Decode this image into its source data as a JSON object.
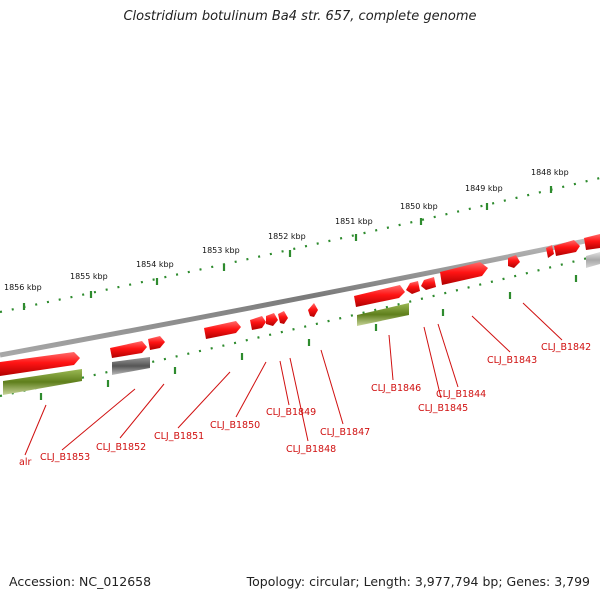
{
  "title": "Clostridium botulinum Ba4 str. 657, complete genome",
  "footer": {
    "accession": "Accession: NC_012658",
    "summary": "Topology: circular; Length: 3,977,794 bp; Genes: 3,799"
  },
  "colors": {
    "backbone": "#8a8a8a",
    "tick": "#2e8b2e",
    "gene_red": "#ff1a1a",
    "gene_olive": "#6b8e23",
    "gene_gray": "#6f6f6f",
    "gene_lightgray": "#bdbdbd",
    "label": "#d01010"
  },
  "ruler": {
    "labels": [
      "1848 kbp",
      "1849 kbp",
      "1850 kbp",
      "1851 kbp",
      "1852 kbp",
      "1853 kbp",
      "1854 kbp",
      "1855 kbp",
      "1856 kbp"
    ]
  },
  "genes": [
    {
      "locus": "CLJ_B1842"
    },
    {
      "locus": "CLJ_B1843"
    },
    {
      "locus": "CLJ_B1844"
    },
    {
      "locus": "CLJ_B1845"
    },
    {
      "locus": "CLJ_B1846"
    },
    {
      "locus": "CLJ_B1847"
    },
    {
      "locus": "CLJ_B1848"
    },
    {
      "locus": "CLJ_B1849"
    },
    {
      "locus": "CLJ_B1850"
    },
    {
      "locus": "CLJ_B1851"
    },
    {
      "locus": "CLJ_B1852"
    },
    {
      "locus": "CLJ_B1853"
    },
    {
      "locus": "alr"
    }
  ]
}
